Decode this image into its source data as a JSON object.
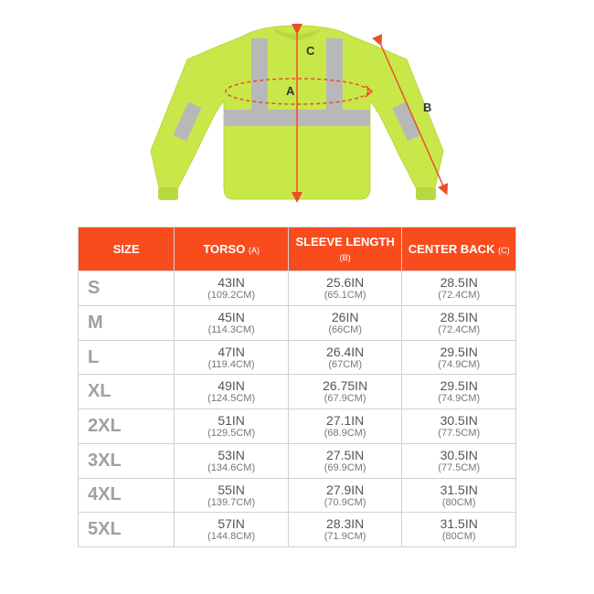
{
  "diagram": {
    "labels": {
      "torso": "A",
      "sleeve": "B",
      "center_back": "C"
    },
    "colors": {
      "shirt": "#c8e84a",
      "shirt_shade": "#b8d840",
      "reflective": "#b8b8b8",
      "arrow": "#e8502a",
      "text": "#333333"
    }
  },
  "table": {
    "header_bg": "#f84c1e",
    "header_fg": "#ffffff",
    "border": "#d0d0d0",
    "size_fg": "#a0a0a0",
    "columns": [
      {
        "label": "SIZE",
        "sub": ""
      },
      {
        "label": "TORSO",
        "sub": "(A)"
      },
      {
        "label": "SLEEVE LENGTH",
        "sub": "(B)"
      },
      {
        "label": "CENTER BACK",
        "sub": "(C)"
      }
    ],
    "rows": [
      {
        "size": "S",
        "torso_in": "43IN",
        "torso_cm": "(109.2CM)",
        "sleeve_in": "25.6IN",
        "sleeve_cm": "(65.1CM)",
        "back_in": "28.5IN",
        "back_cm": "(72.4CM)"
      },
      {
        "size": "M",
        "torso_in": "45IN",
        "torso_cm": "(114.3CM)",
        "sleeve_in": "26IN",
        "sleeve_cm": "(66CM)",
        "back_in": "28.5IN",
        "back_cm": "(72.4CM)"
      },
      {
        "size": "L",
        "torso_in": "47IN",
        "torso_cm": "(119.4CM)",
        "sleeve_in": "26.4IN",
        "sleeve_cm": "(67CM)",
        "back_in": "29.5IN",
        "back_cm": "(74.9CM)"
      },
      {
        "size": "XL",
        "torso_in": "49IN",
        "torso_cm": "(124.5CM)",
        "sleeve_in": "26.75IN",
        "sleeve_cm": "(67.9CM)",
        "back_in": "29.5IN",
        "back_cm": "(74.9CM)"
      },
      {
        "size": "2XL",
        "torso_in": "51IN",
        "torso_cm": "(129.5CM)",
        "sleeve_in": "27.1IN",
        "sleeve_cm": "(68.9CM)",
        "back_in": "30.5IN",
        "back_cm": "(77.5CM)"
      },
      {
        "size": "3XL",
        "torso_in": "53IN",
        "torso_cm": "(134.6CM)",
        "sleeve_in": "27.5IN",
        "sleeve_cm": "(69.9CM)",
        "back_in": "30.5IN",
        "back_cm": "(77.5CM)"
      },
      {
        "size": "4XL",
        "torso_in": "55IN",
        "torso_cm": "(139.7CM)",
        "sleeve_in": "27.9IN",
        "sleeve_cm": "(70.9CM)",
        "back_in": "31.5IN",
        "back_cm": "(80CM)"
      },
      {
        "size": "5XL",
        "torso_in": "57IN",
        "torso_cm": "(144.8CM)",
        "sleeve_in": "28.3IN",
        "sleeve_cm": "(71.9CM)",
        "back_in": "31.5IN",
        "back_cm": "(80CM)"
      }
    ]
  }
}
